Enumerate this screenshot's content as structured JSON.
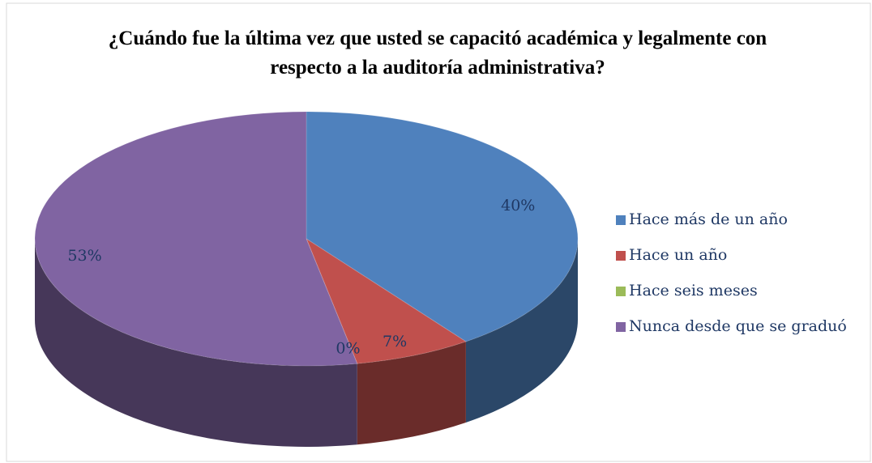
{
  "chart_data": {
    "type": "pie",
    "title": "¿Cuándo fue la última vez que usted se capacitó académica y legalmente con respecto a la auditoría administrativa?",
    "categories": [
      "Hace más de un año",
      "Hace un año",
      "Hace seis meses",
      "Nunca desde que se graduó"
    ],
    "values": [
      40,
      7,
      0,
      53
    ],
    "value_labels": [
      "40%",
      "7%",
      "0%",
      "53%"
    ],
    "colors": [
      "#4f81bd",
      "#c0504d",
      "#9bbb59",
      "#8064a2"
    ],
    "legend": "right"
  }
}
